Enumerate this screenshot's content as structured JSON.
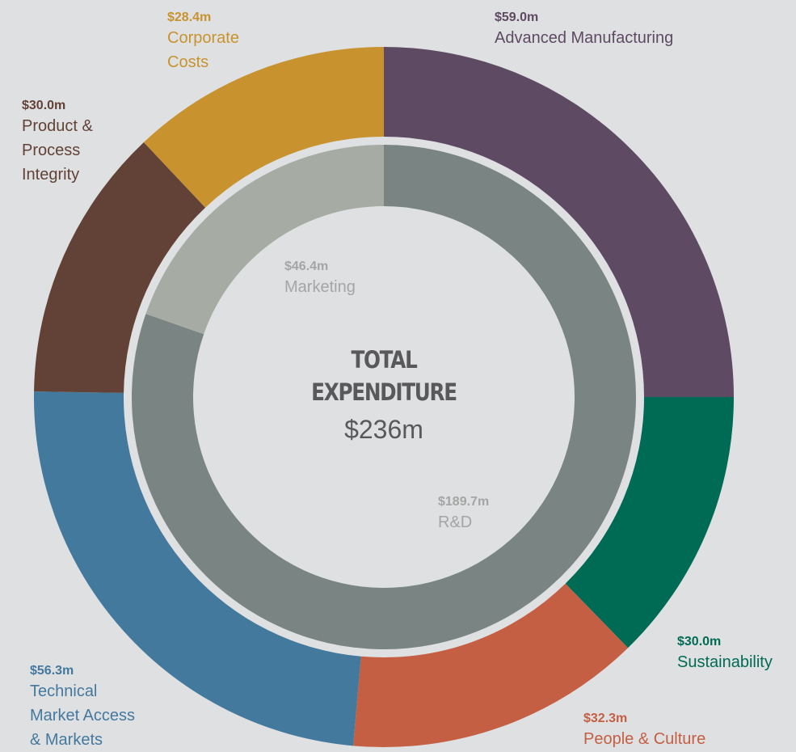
{
  "center": {
    "title_line1": "TOTAL",
    "title_line2": "EXPENDITURE",
    "total": "$236m"
  },
  "chart_data": [
    {
      "type": "pie",
      "ring": "outer",
      "slices": [
        {
          "name": "Advanced Manufacturing",
          "value_label": "$59.0m",
          "value": 59.0,
          "color": "#5e4a63"
        },
        {
          "name": "Sustainability",
          "value_label": "$30.0m",
          "value": 30.0,
          "color": "#006b54"
        },
        {
          "name": "People & Culture",
          "value_label": "$32.3m",
          "value": 32.3,
          "color": "#c45f44"
        },
        {
          "name": "Technical\nMarket Access\n& Markets",
          "value_label": "$56.3m",
          "value": 56.3,
          "color": "#44799e"
        },
        {
          "name": "Product &\nProcess\nIntegrity",
          "value_label": "$30.0m",
          "value": 30.0,
          "color": "#624236"
        },
        {
          "name": "Corporate\nCosts",
          "value_label": "$28.4m",
          "value": 28.4,
          "color": "#c8932f"
        }
      ]
    },
    {
      "type": "pie",
      "ring": "inner",
      "slices": [
        {
          "name": "R&D",
          "value_label": "$189.7m",
          "value": 189.7,
          "color": "#7a8483"
        },
        {
          "name": "Marketing",
          "value_label": "$46.4m",
          "value": 46.4,
          "color": "#a6aba3"
        }
      ]
    }
  ]
}
